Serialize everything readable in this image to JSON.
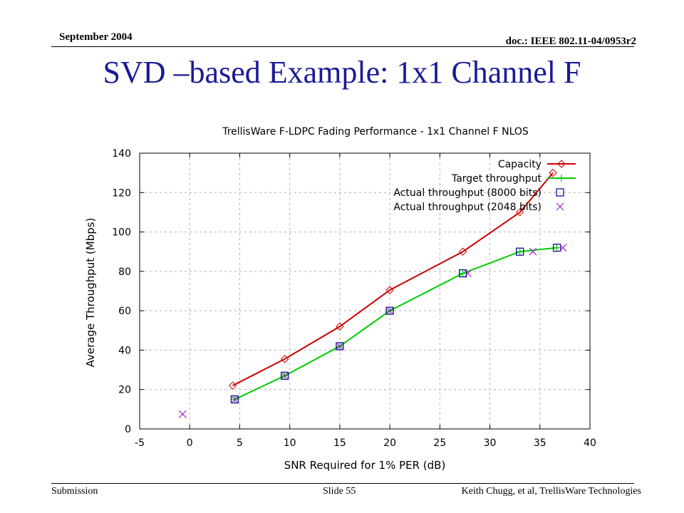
{
  "header": {
    "date": "September 2004",
    "doc_id": "doc.: IEEE 802.11-04/0953r2"
  },
  "slide": {
    "title": "SVD –based Example: 1x1 Channel F"
  },
  "footer": {
    "left": "Submission",
    "center": "Slide 55",
    "right": "Keith Chugg, et al, TrellisWare Technologies"
  },
  "chart_data": {
    "type": "line",
    "title": "TrellisWare F-LDPC Fading Performance - 1x1 Channel F NLOS",
    "xlabel": "SNR Required for 1% PER (dB)",
    "ylabel": "Average Throughput (Mbps)",
    "xlim": [
      -5,
      40
    ],
    "ylim": [
      0,
      140
    ],
    "xticks": [
      -5,
      0,
      5,
      10,
      15,
      20,
      25,
      30,
      35,
      40
    ],
    "yticks": [
      0,
      20,
      40,
      60,
      80,
      100,
      120,
      140
    ],
    "grid": true,
    "legend_position": "top-right",
    "series": [
      {
        "name": "Capacity",
        "color": "#cc0000",
        "style": "line-with-diamond-markers",
        "points": [
          [
            4.3,
            22
          ],
          [
            9.5,
            35.5
          ],
          [
            15.0,
            52
          ],
          [
            20.0,
            70.5
          ],
          [
            27.3,
            90
          ],
          [
            33.0,
            110
          ],
          [
            36.3,
            130
          ]
        ]
      },
      {
        "name": "Target throughput",
        "color": "#00cc00",
        "style": "line-with-plus-markers",
        "points": [
          [
            4.5,
            15
          ],
          [
            9.5,
            27
          ],
          [
            15.0,
            42
          ],
          [
            20.0,
            60
          ],
          [
            27.3,
            79
          ],
          [
            33.0,
            90
          ],
          [
            36.7,
            92
          ]
        ]
      },
      {
        "name": "Actual throughput (8000 bits)",
        "color": "#000099",
        "style": "square-markers",
        "points": [
          [
            4.5,
            15
          ],
          [
            9.5,
            27
          ],
          [
            15.0,
            42
          ],
          [
            20.0,
            60
          ],
          [
            27.3,
            79
          ],
          [
            33.0,
            90
          ],
          [
            36.7,
            92
          ]
        ]
      },
      {
        "name": "Actual throughput (2048 bits)",
        "color": "#aa22cc",
        "style": "x-markers",
        "points": [
          [
            -0.7,
            7.5
          ],
          [
            4.5,
            15
          ],
          [
            9.5,
            27
          ],
          [
            15.0,
            42
          ],
          [
            20.0,
            60
          ],
          [
            27.8,
            79
          ],
          [
            34.3,
            90
          ],
          [
            37.3,
            92
          ]
        ]
      }
    ]
  }
}
